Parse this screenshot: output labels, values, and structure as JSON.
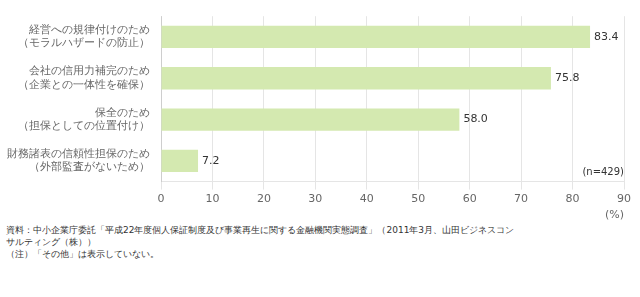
{
  "chart_data": {
    "type": "bar",
    "orientation": "horizontal",
    "categories": [
      "経営への規律付けのため\n（モラルハザードの防止）",
      "会社の信用力補完のため\n（企業との一体性を確保）",
      "保全のため\n（担保としての位置付け）",
      "財務諸表の信頼性担保のため\n（外部監査がないため）"
    ],
    "values": [
      83.4,
      75.8,
      58.0,
      7.2
    ],
    "value_labels": [
      "83.4",
      "75.8",
      "58.0",
      "7.2"
    ],
    "data_labels": true,
    "color": "#d4e9b0",
    "xlim": [
      0,
      90
    ],
    "xticks": [
      0,
      10,
      20,
      30,
      40,
      50,
      60,
      70,
      80,
      90
    ],
    "xlabel": "(%)",
    "grid": true,
    "annotations": [
      "(n=429)"
    ],
    "footnotes": [
      "資料：中小企業庁委託「平成22年度個人保証制度及び事業再生に関する金融機関実態調査」（2011年3月、山田ビジネスコン",
      "サルティング（株））",
      "（注）「その他」は表示していない。"
    ]
  }
}
